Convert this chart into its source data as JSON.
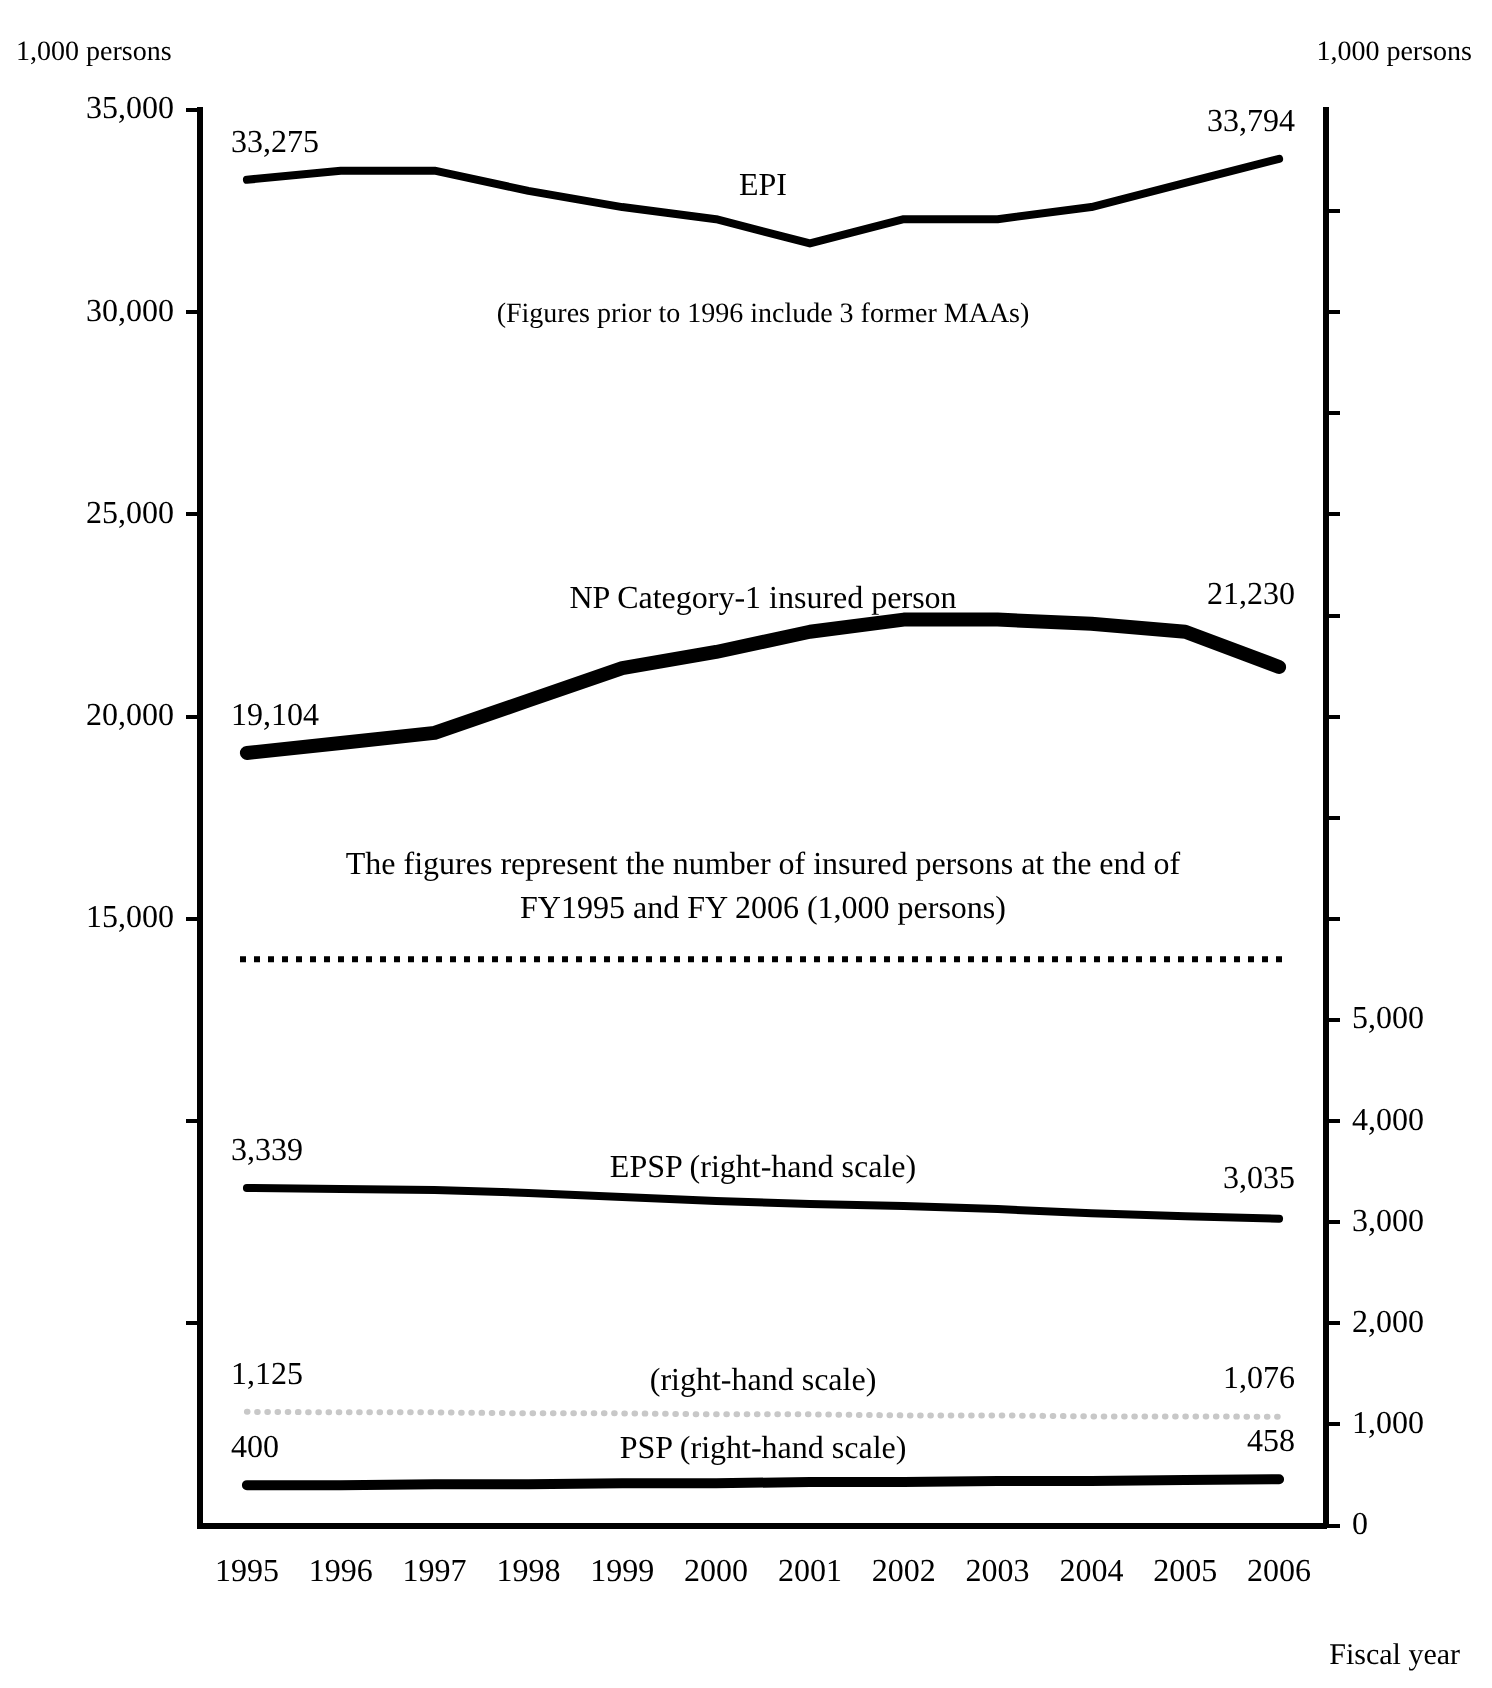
{
  "chart_data": {
    "type": "line",
    "xlabel": "Fiscal year",
    "ylabel": "1,000 persons",
    "y2label": "1,000 persons",
    "categories": [
      "1995",
      "1996",
      "1997",
      "1998",
      "1999",
      "2000",
      "2001",
      "2002",
      "2003",
      "2004",
      "2005",
      "2006"
    ],
    "series": [
      {
        "name": "EPI",
        "color": "#000000",
        "values": [
          33275,
          33500,
          33500,
          33000,
          32600,
          32300,
          31700,
          32300,
          32300,
          32600,
          33200,
          33794
        ],
        "value_labels": [
          "33,275",
          null,
          null,
          null,
          null,
          null,
          null,
          null,
          null,
          null,
          null,
          "33,794"
        ]
      },
      {
        "name": "NP Category-1 insured person",
        "color": "#000000",
        "values": [
          19104,
          19350,
          19600,
          20400,
          21200,
          21600,
          22100,
          22400,
          22400,
          22300,
          22100,
          21230
        ],
        "value_labels": [
          "19,104",
          null,
          null,
          null,
          null,
          null,
          null,
          null,
          null,
          null,
          null,
          "21,230"
        ]
      },
      {
        "name": "EPSP (right-hand scale)",
        "color": "#000000",
        "axis": "y2",
        "values": [
          3339,
          3330,
          3320,
          3290,
          3250,
          3210,
          3180,
          3160,
          3130,
          3090,
          3060,
          3035
        ],
        "value_labels": [
          "3,339",
          null,
          null,
          null,
          null,
          null,
          null,
          null,
          null,
          null,
          null,
          "3,035"
        ]
      },
      {
        "name": "(right-hand scale)",
        "color": "#c8c8c8",
        "axis": "y2",
        "line_style": "dotted",
        "values": [
          1125,
          1120,
          1120,
          1110,
          1110,
          1100,
          1100,
          1090,
          1090,
          1080,
          1080,
          1076
        ],
        "value_labels": [
          "1,125",
          null,
          null,
          null,
          null,
          null,
          null,
          null,
          null,
          null,
          null,
          "1,076"
        ]
      },
      {
        "name": "PSP (right-hand scale)",
        "color": "#000000",
        "axis": "y2",
        "values": [
          400,
          400,
          410,
          410,
          420,
          420,
          430,
          430,
          440,
          440,
          450,
          458
        ],
        "value_labels": [
          "400",
          null,
          null,
          null,
          null,
          null,
          null,
          null,
          null,
          null,
          null,
          "458"
        ]
      }
    ],
    "ylim": [
      0,
      35000
    ],
    "yticks": [
      {
        "value": 5000,
        "label": null
      },
      {
        "value": 10000,
        "label": null
      },
      {
        "value": 15000,
        "label": "15,000"
      },
      {
        "value": 20000,
        "label": "20,000"
      },
      {
        "value": 25000,
        "label": "25,000"
      },
      {
        "value": 30000,
        "label": "30,000"
      },
      {
        "value": 35000,
        "label": "35,000"
      }
    ],
    "y2lim": [
      0,
      14000
    ],
    "y2ticks": [
      0,
      {
        "value": 1000,
        "label": "1,000"
      },
      {
        "value": 2000,
        "label": "2,000"
      },
      {
        "value": 3000,
        "label": "3,000"
      },
      {
        "value": 4000,
        "label": "4,000"
      },
      {
        "value": 5000,
        "label": "5,000"
      },
      {
        "value": 6000,
        "label": null
      },
      {
        "value": 7000,
        "label": null
      },
      {
        "value": 8000,
        "label": null
      },
      {
        "value": 9000,
        "label": null
      },
      {
        "value": 10000,
        "label": null
      },
      {
        "value": 11000,
        "label": null
      },
      {
        "value": 12000,
        "label": null
      },
      {
        "value": 13000,
        "label": null
      }
    ],
    "ref_lines": [
      {
        "axis": "y",
        "value": 14000,
        "color": "#000000",
        "line_style": "dotted"
      }
    ],
    "annotations": [
      "(Figures prior to 1996 include 3 former MAAs)",
      "The figures represent the number of insured persons at the end of FY1995 and FY 2006 (1,000 persons)"
    ],
    "legend": false,
    "marker": "none",
    "line_style": "solid"
  }
}
